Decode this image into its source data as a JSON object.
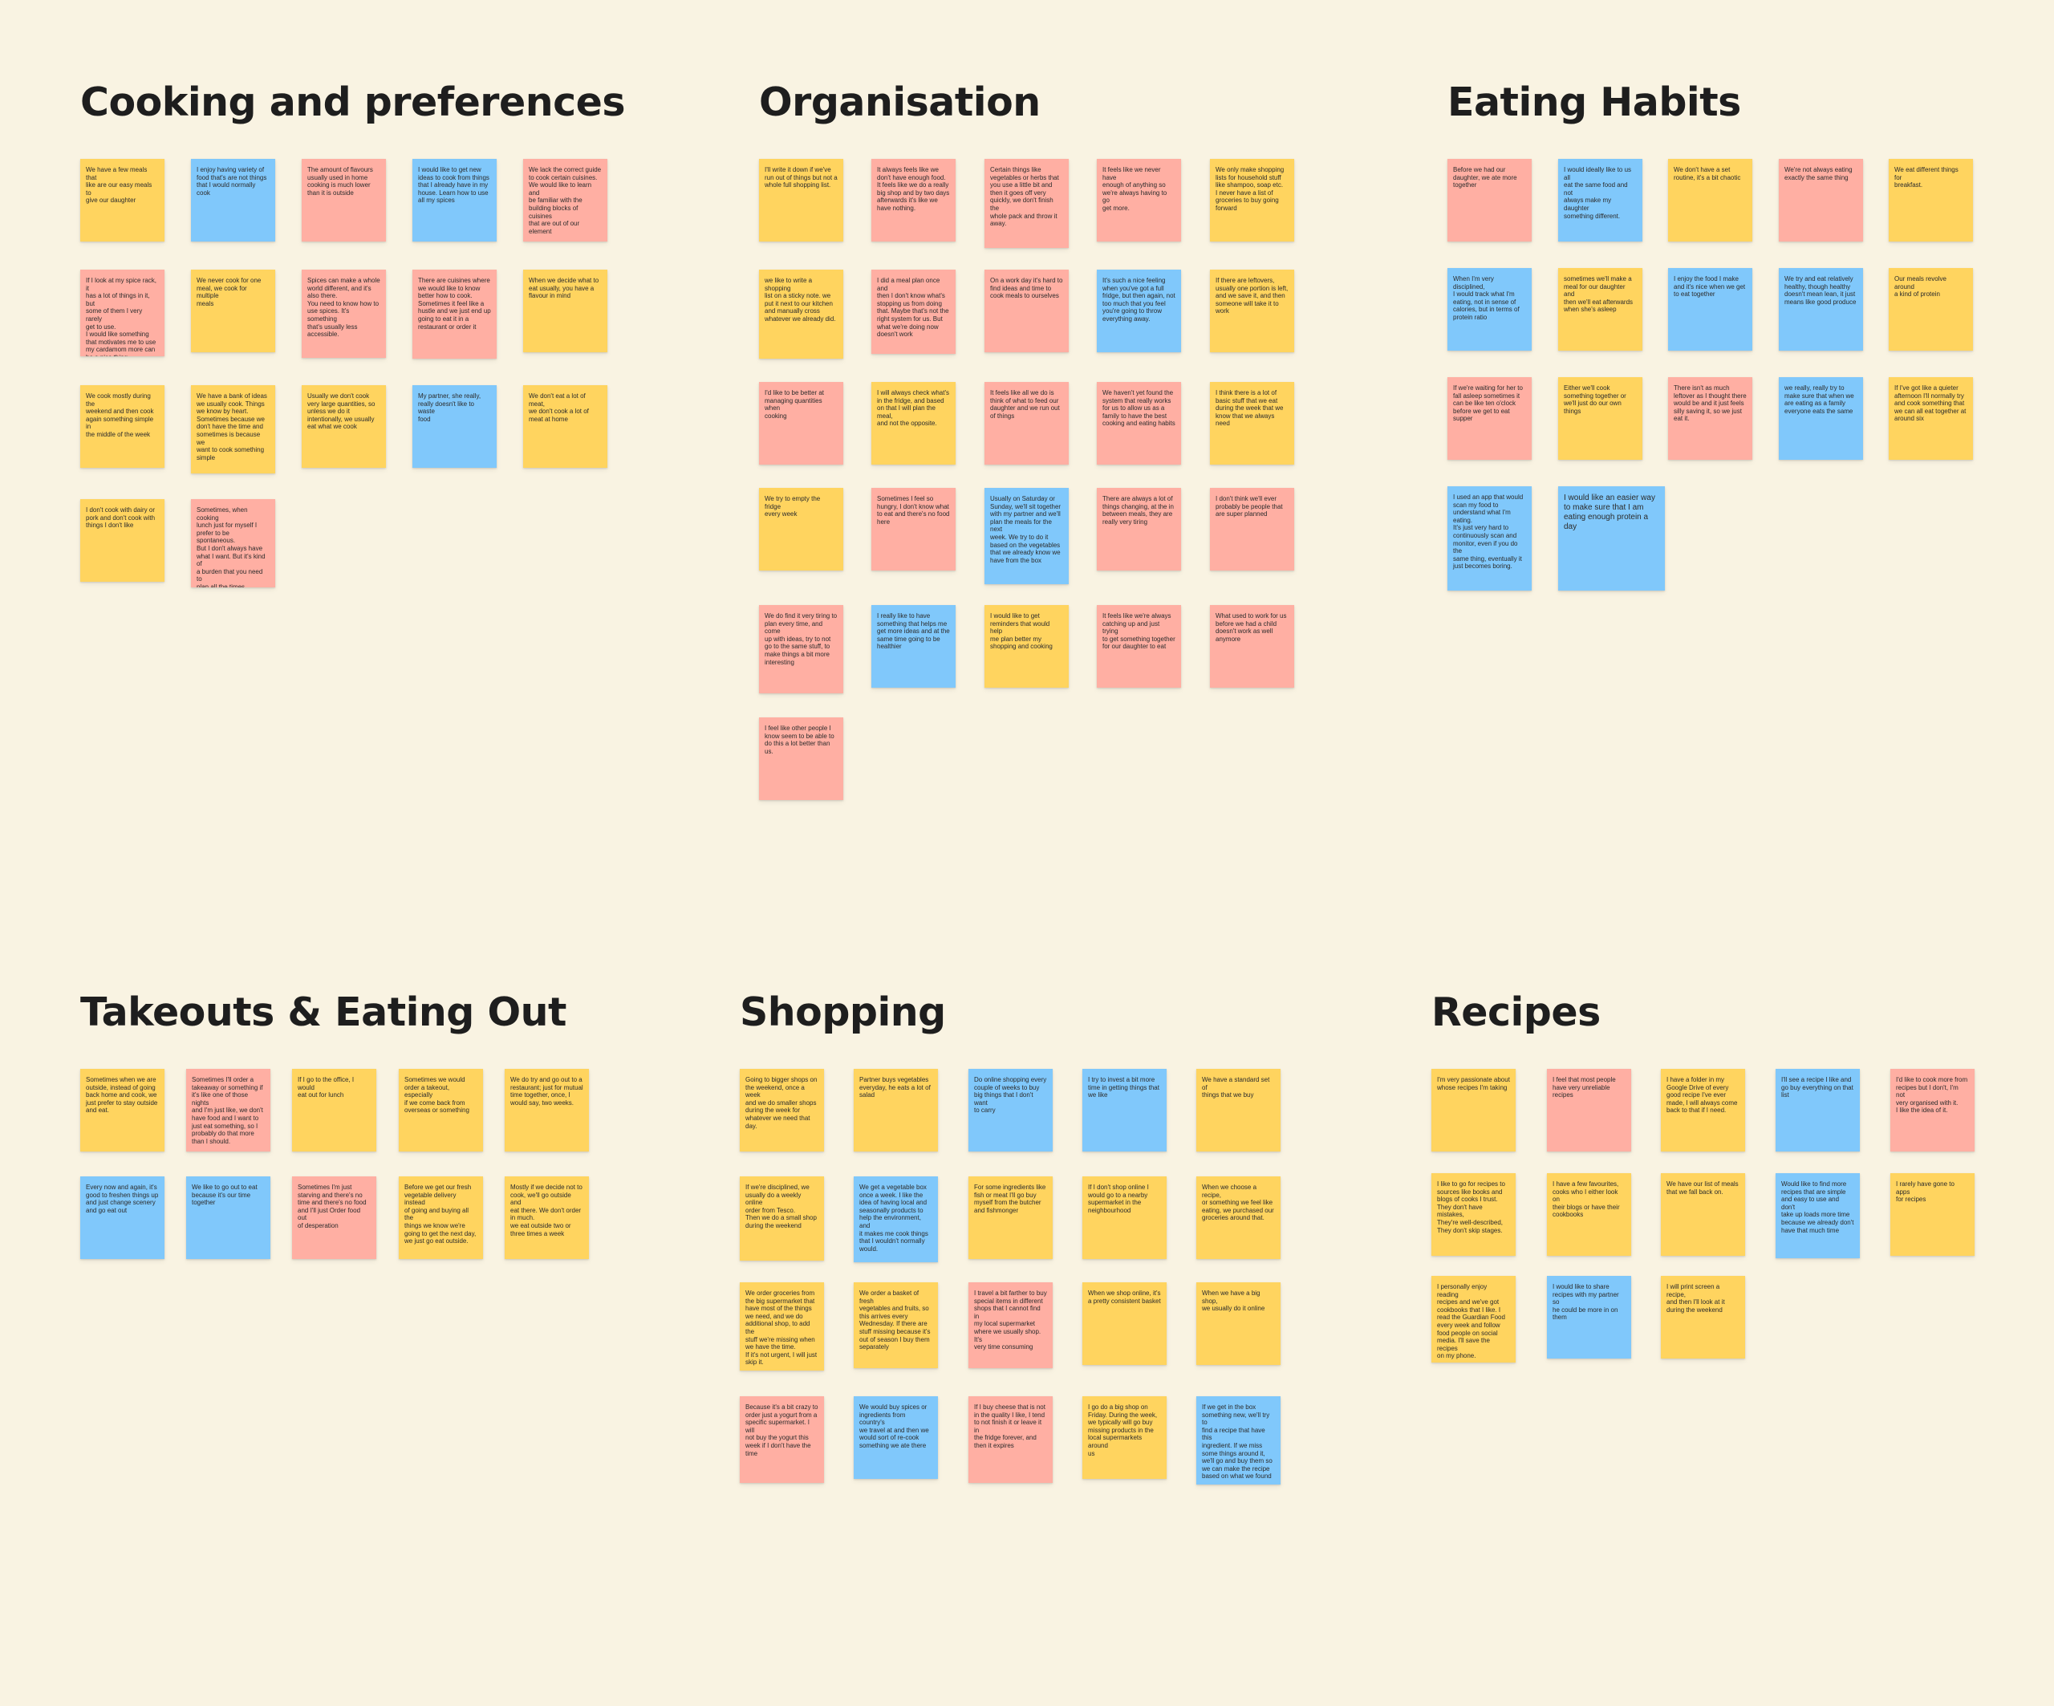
{
  "colors": {
    "background": "#f9f3e2",
    "yellow": "#ffd45f",
    "blue": "#80c8fb",
    "pink": "#ffafa3"
  },
  "clusters": [
    {
      "title": "Cooking and preferences",
      "notes": [
        {
          "color": "yellow",
          "text": "We have a few meals that\nlike are our easy meals to\ngive our daughter"
        },
        {
          "color": "blue",
          "text": "I enjoy having variety of\nfood that's are not things\nthat I would normally cook"
        },
        {
          "color": "pink",
          "text": "The amount of flavours\nusually used in home\ncooking is much lower\nthan it is outside"
        },
        {
          "color": "blue",
          "text": "I would like to get new\nideas to cook from things\nthat I already have in my\nhouse. Learn how to use\nall my spices"
        },
        {
          "color": "pink",
          "text": "We lack the correct guide\nto cook certain cuisines.\nWe would like to learn and\nbe familiar with the\nbuilding blocks of cuisines\nthat are out of our element"
        },
        {
          "color": "pink",
          "text": "If I look at my spice rack, it\nhas a lot of things in it, but\nsome of them I very rarely\nget to use.\nI would like something\nthat motivates me to use\nmy cardamom more can\nbe a nice thing"
        },
        {
          "color": "yellow",
          "text": "We never cook for one\nmeal, we cook for multiple\nmeals"
        },
        {
          "color": "pink",
          "text": "Spices can make a whole\nworld different, and it's\nalso there.\nYou need to know how to\nuse spices. It's something\nthat's usually less\naccessible."
        },
        {
          "color": "pink",
          "text": "There are cuisines where\nwe would like to know\nbetter how to cook.\nSometimes it feel like a\nhustle and we just end up\ngoing to eat it in a\nrestaurant or order it"
        },
        {
          "color": "yellow",
          "text": "When we decide what to\neat usually, you have a\nflavour in mind"
        },
        {
          "color": "yellow",
          "text": "We cook mostly during the\nweekend and then cook\nagain something simple in\nthe middle of the week"
        },
        {
          "color": "yellow",
          "text": "We have a bank of ideas\nwe usually cook. Things\nwe know by heart.\nSometimes because we\ndon't have the time and\nsometimes is because we\nwant to cook something\nsimple"
        },
        {
          "color": "yellow",
          "text": "Usually we don't cook\nvery large quantities, so\nunless we do it\nintentionally, we usually\neat what we cook"
        },
        {
          "color": "blue",
          "text": "My partner, she really,\nreally doesn't like to waste\nfood"
        },
        {
          "color": "yellow",
          "text": "We don't eat a lot of meat,\nwe don't cook a lot of\nmeat at home"
        },
        {
          "color": "yellow",
          "text": "I don't cook with dairy or\npork and don't cook with\nthings I don't like"
        },
        {
          "color": "pink",
          "text": "Sometimes, when cooking\nlunch just for myself I\nprefer to be spontaneous.\nBut I don't always have\nwhat I want. But it's kind of\na burden that you need to\nplan all the times."
        }
      ]
    },
    {
      "title": "Organisation",
      "notes": [
        {
          "color": "yellow",
          "text": "I'll write it down if we've\nrun out of things but not a\nwhole full shopping list."
        },
        {
          "color": "pink",
          "text": "It always feels like we\ndon't have enough food.\nIt feels like we do a really\nbig shop and by two days\nafterwards it's like we\nhave nothing."
        },
        {
          "color": "pink",
          "text": "Certain things like\nvegetables or herbs that\nyou use a little bit and\nthen it goes off very\nquickly, we don't finish the\nwhole pack and throw it\naway."
        },
        {
          "color": "pink",
          "text": "It feels like we never have\nenough of anything so\nwe're always having to go\nget more."
        },
        {
          "color": "yellow",
          "text": "We only make shopping\nlists for household stuff\nlike shampoo, soap etc.\nI never have a list of\ngroceries to buy going\nforward"
        },
        {
          "color": "yellow",
          "text": "we like to write a shopping\nlist on a sticky note. we\nput it next to our kitchen\nand manually cross\nwhatever we already did."
        },
        {
          "color": "pink",
          "text": "I did a meal plan once and\nthen I don't know what's\nstopping us from doing\nthat. Maybe that's not the\nright system for us. But\nwhat we're doing now\ndoesn't work"
        },
        {
          "color": "pink",
          "text": "On a work day it's hard to\nfind ideas and time to\ncook meals to ourselves"
        },
        {
          "color": "blue",
          "text": "It's such a nice feeling\nwhen you've got a full\nfridge, but then again, not\ntoo much that you feel\nyou're going to throw\neverything away."
        },
        {
          "color": "yellow",
          "text": "If there are leftovers,\nusually one portion is left,\nand we save it, and then\nsomeone will take it to\nwork"
        },
        {
          "color": "pink",
          "text": "I'd like to be better at\nmanaging quantities when\ncooking"
        },
        {
          "color": "yellow",
          "text": "I will always check what's\nin the fridge, and based\non that I will plan the meal,\nand not the opposite."
        },
        {
          "color": "pink",
          "text": "It feels like all we do is\nthink of what to feed our\ndaughter and we run out\nof things"
        },
        {
          "color": "pink",
          "text": "We haven't yet found the\nsystem that really works\nfor us to allow us as a\nfamily to have the best\ncooking and eating habits"
        },
        {
          "color": "yellow",
          "text": "I think there is a lot of\nbasic stuff that we eat\nduring the week that we\nknow that we always need"
        },
        {
          "color": "yellow",
          "text": "We try to empty the fridge\nevery week"
        },
        {
          "color": "pink",
          "text": "Sometimes I feel so\nhungry, I don't know what\nto eat and there's no food\nhere"
        },
        {
          "color": "blue",
          "text": "Usually on Saturday or\nSunday, we'll sit together\nwith my partner and we'll\nplan the meals for the next\nweek. We try to do it\nbased on the vegetables\nthat we already know we\nhave from the box"
        },
        {
          "color": "pink",
          "text": "There are always a lot of\nthings changing, at the in\nbetween meals, they are\nreally very tiring"
        },
        {
          "color": "pink",
          "text": "I don't think we'll ever\nprobably be people that\nare super planned"
        },
        {
          "color": "pink",
          "text": "We do find it very tiring to\nplan every time, and come\nup with ideas, try to not\ngo to the same stuff, to\nmake things a bit more\ninteresting"
        },
        {
          "color": "blue",
          "text": "I really like to have\nsomething that helps me\nget more ideas and at the\nsame time going to be\nhealthier"
        },
        {
          "color": "yellow",
          "text": "I would like to get\nreminders that would help\nme plan better my\nshopping and cooking"
        },
        {
          "color": "pink",
          "text": "It feels like we're always\ncatching up and just trying\nto get something together\nfor our daughter to eat"
        },
        {
          "color": "pink",
          "text": "What used to work for us\nbefore we had a child\ndoesn't work as well\nanymore"
        },
        {
          "color": "pink",
          "text": "I feel like other people I\nknow seem to be able to\ndo this a lot better than\nus."
        }
      ]
    },
    {
      "title": "Eating Habits",
      "notes": [
        {
          "color": "pink",
          "text": "Before we had our\ndaughter, we ate more\ntogether"
        },
        {
          "color": "blue",
          "text": "I would ideally like to us all\neat the same food and not\nalways make my daughter\nsomething different."
        },
        {
          "color": "yellow",
          "text": "We don't have a set\nroutine, it's a bit chaotic"
        },
        {
          "color": "pink",
          "text": "We're not always eating\nexactly the same thing"
        },
        {
          "color": "yellow",
          "text": "We eat different things for\nbreakfast."
        },
        {
          "color": "blue",
          "text": "When I'm very disciplined,\nI would track what I'm\neating, not in sense of\ncalories, but in terms of\nprotein ratio"
        },
        {
          "color": "yellow",
          "text": "sometimes we'll make a\nmeal for our daughter and\nthen we'll eat afterwards\nwhen she's asleep"
        },
        {
          "color": "blue",
          "text": "I enjoy the food I make\nand it's nice when we get\nto eat together"
        },
        {
          "color": "blue",
          "text": "We try and eat relatively\nhealthy, though healthy\ndoesn't mean lean, it just\nmeans like good produce"
        },
        {
          "color": "yellow",
          "text": "Our meals revolve around\na kind of protein"
        },
        {
          "color": "pink",
          "text": "If we're waiting for her to\nfall asleep sometimes it\ncan be like ten o'clock\nbefore we get to eat\nsupper"
        },
        {
          "color": "yellow",
          "text": "Either we'll cook\nsomething together or\nwe'll just do our own\nthings"
        },
        {
          "color": "pink",
          "text": "There isn't as much\nleftover as I thought there\nwould be and it just feels\nsilly saving it, so we just\neat it."
        },
        {
          "color": "blue",
          "text": "we really, really try to\nmake sure that when we\nare eating as a family\neveryone eats the same"
        },
        {
          "color": "yellow",
          "text": "If I've got like a quieter\nafternoon I'll normally try\nand cook something that\nwe can all eat together at\naround six"
        },
        {
          "color": "blue",
          "text": "I used an app that would\nscan my food to\nunderstand what I'm\neating.\nIt's just very hard to\ncontinuously scan and\nmonitor, even if you do the\nsame thing, eventually it\njust becomes boring."
        },
        {
          "color": "blue",
          "text": "I would like an easier way\nto make sure that I am\neating enough protein a\nday"
        }
      ]
    },
    {
      "title": "Takeouts & Eating Out",
      "notes": [
        {
          "color": "yellow",
          "text": "Sometimes when we are\noutside, instead of going\nback home and cook, we\njust prefer to stay outside\nand eat."
        },
        {
          "color": "pink",
          "text": "Sometimes I'll order a\ntakeaway or something if\nit's like one of those nights\nand I'm just like, we don't\nhave food and I want to\njust eat something, so I\nprobably do that more\nthan I should."
        },
        {
          "color": "yellow",
          "text": "If I go to the office, I would\neat out for lunch"
        },
        {
          "color": "yellow",
          "text": "Sometimes we would\norder a takeout, especially\nif we come back from\noverseas or something"
        },
        {
          "color": "yellow",
          "text": "We do try and go out to a\nrestaurant; just for mutual\ntime together, once, I\nwould say, two weeks."
        },
        {
          "color": "blue",
          "text": "Every now and again, it's\ngood to freshen things up\nand just change scenery\nand go eat out"
        },
        {
          "color": "blue",
          "text": "We like to go out to eat\nbecause it's our time\ntogether"
        },
        {
          "color": "pink",
          "text": "Sometimes I'm just\nstarving and there's no\ntime and there's no food\nand I'll just Order food out\nof desperation"
        },
        {
          "color": "yellow",
          "text": "Before we get our fresh\nvegetable delivery instead\nof going and buying all the\nthings we know we're\ngoing to get the next day,\nwe just go eat outside."
        },
        {
          "color": "yellow",
          "text": "Mostly if we decide not to\ncook, we'll go outside and\neat there. We don't order\nin much.\nwe eat outside two or\nthree times a week"
        }
      ]
    },
    {
      "title": "Shopping",
      "notes": [
        {
          "color": "yellow",
          "text": "Going to bigger shops on\nthe weekend, once a week\nand we do smaller shops\nduring the week for\nwhatever we need that\nday."
        },
        {
          "color": "yellow",
          "text": "Partner buys vegetables\neveryday, he eats a lot of\nsalad"
        },
        {
          "color": "blue",
          "text": "Do online shopping every\ncouple of weeks to buy\nbig things that I don't want\nto carry"
        },
        {
          "color": "blue",
          "text": "I try to invest a bit more\ntime in getting things that\nwe like"
        },
        {
          "color": "yellow",
          "text": "We have a standard set of\nthings that we buy"
        },
        {
          "color": "yellow",
          "text": "If we're disciplined, we\nusually do a weekly online\norder from Tesco.\nThen we do a small shop\nduring the weekend"
        },
        {
          "color": "blue",
          "text": "We get a vegetable box\nonce a week. I like the\nidea of having local and\nseasonally products to\nhelp the environment, and\nit makes me cook things\nthat I wouldn't normally\nwould."
        },
        {
          "color": "yellow",
          "text": "For some ingredients like\nfish or meat I'll go buy\nmyself from the butcher\nand fishmonger"
        },
        {
          "color": "yellow",
          "text": "If I don't shop online I\nwould go to a nearby\nsupermarket in the\nneighbourhood"
        },
        {
          "color": "yellow",
          "text": "When we choose a recipe,\nor something we feel like\neating, we purchased our\ngroceries around that."
        },
        {
          "color": "yellow",
          "text": "We order groceries from\nthe big supermarket that\nhave most of the things\nwe need, and we do\nadditional shop, to add the\nstuff we're missing when\nwe have the time.\nIf it's not urgent, I will just\nskip it."
        },
        {
          "color": "yellow",
          "text": "We order a basket of fresh\nvegetables and fruits, so\nthis arrives every\nWednesday. If there are\nstuff missing because it's\nout of season I buy them\nseparately"
        },
        {
          "color": "pink",
          "text": "I travel a bit farther to buy\nspecial items in different\nshops that I cannot find in\nmy local supermarket\nwhere we usually shop. It's\nvery time consuming"
        },
        {
          "color": "yellow",
          "text": "When we shop online, it's\na pretty consistent basket"
        },
        {
          "color": "yellow",
          "text": "When we have a big shop,\nwe usually do it online"
        },
        {
          "color": "pink",
          "text": "Because it's a bit crazy to\norder just a yogurt from a\nspecific supermarket. I will\nnot buy the yogurt this\nweek if I don't have the\ntime"
        },
        {
          "color": "blue",
          "text": "We would buy spices or\ningredients from country's\nwe travel at and then we\nwould sort of re-cook\nsomething we ate there"
        },
        {
          "color": "pink",
          "text": "If I buy cheese that is not\nin the quality I like, I tend\nto not finish it or leave it in\nthe fridge forever, and\nthen it expires"
        },
        {
          "color": "yellow",
          "text": "I go do a big shop on\nFriday. During the week,\nwe typically will go buy\nmissing products in the\nlocal supermarkets around\nus"
        },
        {
          "color": "blue",
          "text": "If we get in the box\nsomething new, we'll try to\nfind a recipe that have this\ningredient. If we miss\nsome things around it,\nwe'll go and buy them so\nwe can make the recipe\nbased on what we found"
        }
      ]
    },
    {
      "title": "Recipes",
      "notes": [
        {
          "color": "yellow",
          "text": "I'm very passionate about\nwhose recipes I'm taking"
        },
        {
          "color": "pink",
          "text": "I feel that most people\nhave very unreliable\nrecipes"
        },
        {
          "color": "yellow",
          "text": "I have a folder in my\nGoogle Drive of every\ngood recipe I've ever\nmade, I will always come\nback to that if I need."
        },
        {
          "color": "blue",
          "text": "I'll see a recipe I like and\ngo buy everything on that\nlist"
        },
        {
          "color": "pink",
          "text": "I'd like to cook more from\nrecipes but I don't, I'm not\nvery organised with it.\nI like the idea of it."
        },
        {
          "color": "yellow",
          "text": "I like to go for recipes to\nsources like books and\nblogs of cooks I trust.\nThey don't have mistakes,\nThey're well-described,\nThey don't skip stages."
        },
        {
          "color": "yellow",
          "text": "I have a few favourites,\ncooks who I either look on\ntheir blogs or have their\ncookbooks"
        },
        {
          "color": "yellow",
          "text": "We have our list of meals\nthat we fall back on."
        },
        {
          "color": "blue",
          "text": "Would like to find more\nrecipes that are simple\nand easy to use and don't\ntake up loads more time\nbecause we already don't\nhave that much time"
        },
        {
          "color": "yellow",
          "text": "I rarely have gone to apps\nfor recipes"
        },
        {
          "color": "yellow",
          "text": "I personally enjoy reading\nrecipes and we've got\ncookbooks that I like. I\nread the Guardian Food\nevery week and follow\nfood people on social\nmedia. I'll save the recipes\non my phone."
        },
        {
          "color": "blue",
          "text": "I would like to share\nrecipes with my partner so\nhe could be more in on\nthem"
        },
        {
          "color": "yellow",
          "text": "I will print screen a recipe,\nand then I'll look at it\nduring the weekend"
        }
      ]
    }
  ]
}
